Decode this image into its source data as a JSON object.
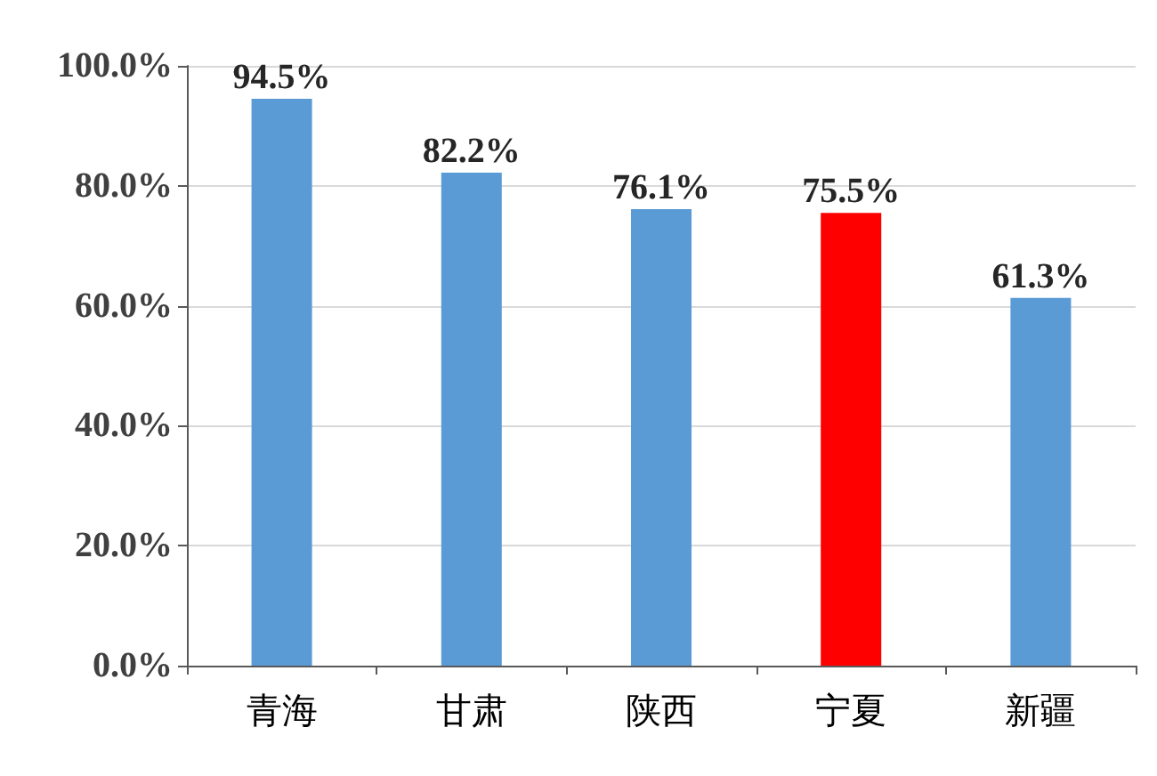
{
  "chart_data": {
    "type": "bar",
    "categories": [
      "青海",
      "甘肃",
      "陕西",
      "宁夏",
      "新疆"
    ],
    "values": [
      94.5,
      82.2,
      76.1,
      75.5,
      61.3
    ],
    "colors": [
      "#5b9bd5",
      "#5b9bd5",
      "#5b9bd5",
      "#ff0000",
      "#5b9bd5"
    ],
    "value_labels": [
      "94.5%",
      "82.2%",
      "76.1%",
      "75.5%",
      "61.3%"
    ],
    "ylim": [
      0,
      100
    ],
    "yticks": [
      {
        "value": 0,
        "label": "0.0%"
      },
      {
        "value": 20,
        "label": "20.0%"
      },
      {
        "value": 40,
        "label": "40.0%"
      },
      {
        "value": 60,
        "label": "60.0%"
      },
      {
        "value": 80,
        "label": "80.0%"
      },
      {
        "value": 100,
        "label": "100.0%"
      }
    ],
    "grid": "y"
  }
}
